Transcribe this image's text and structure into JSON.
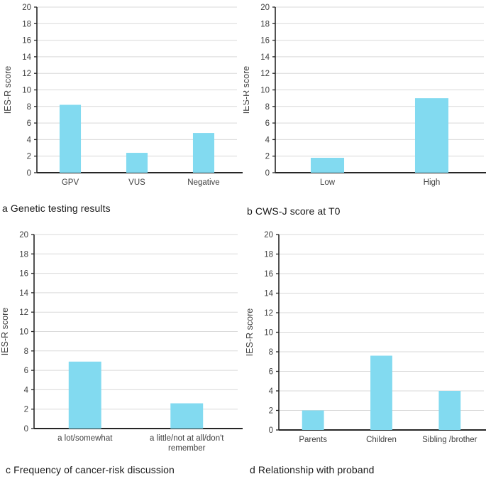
{
  "figure": {
    "background": "#ffffff",
    "bar_color": "#82DAF0",
    "gridline_color": "#D9D9D9",
    "axis_color": "#262626",
    "tick_text_color": "#404040",
    "caption_color": "#1a1a1a"
  },
  "chart_data": [
    {
      "id": "a",
      "type": "bar",
      "title": "a Genetic testing results",
      "ylabel": "IES-R score",
      "xlabel": "",
      "ylim": [
        0,
        20
      ],
      "ytick_step": 2,
      "grid": true,
      "legend": false,
      "categories": [
        "GPV",
        "VUS",
        "Negative"
      ],
      "values": [
        8.2,
        2.4,
        4.8
      ]
    },
    {
      "id": "b",
      "type": "bar",
      "title": "b CWS-J score at T0",
      "ylabel": "IES-R score",
      "xlabel": "",
      "ylim": [
        0,
        20
      ],
      "ytick_step": 2,
      "grid": true,
      "legend": false,
      "categories": [
        "Low",
        "High"
      ],
      "values": [
        1.8,
        9.0
      ]
    },
    {
      "id": "c",
      "type": "bar",
      "title": "c Frequency of cancer-risk discussion",
      "ylabel": "IES-R score",
      "xlabel": "",
      "ylim": [
        0,
        20
      ],
      "ytick_step": 2,
      "grid": true,
      "legend": false,
      "categories": [
        "a lot/somewhat",
        "a little/not at all/don't remember"
      ],
      "values": [
        6.9,
        2.6
      ]
    },
    {
      "id": "d",
      "type": "bar",
      "title": "d Relationship with proband",
      "ylabel": "IES-R score",
      "xlabel": "",
      "ylim": [
        0,
        20
      ],
      "ytick_step": 2,
      "grid": true,
      "legend": false,
      "categories": [
        "Parents",
        "Children",
        "Sibling /brother"
      ],
      "values": [
        2.0,
        7.6,
        4.0
      ]
    }
  ]
}
